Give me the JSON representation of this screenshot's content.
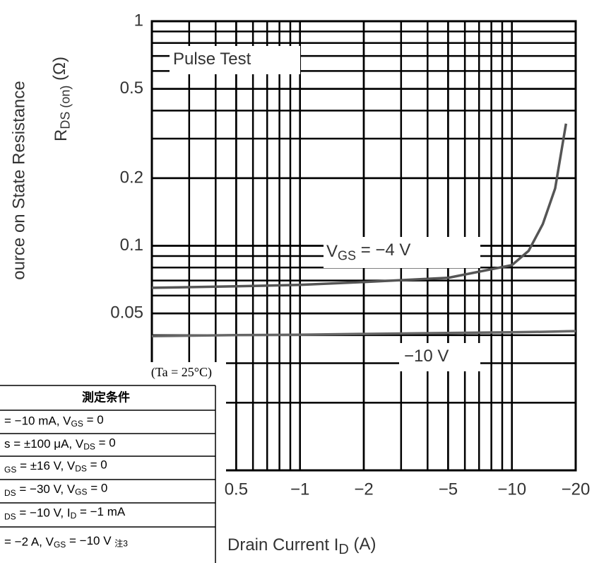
{
  "chart_data": {
    "type": "line",
    "y_title": "ource on State Resistance",
    "y_label": [
      "R",
      "DS (on)",
      "   (Ω)"
    ],
    "x_label": [
      "Drain Current   I",
      "D",
      "   (A)"
    ],
    "annotations": [
      [
        "Pulse Test"
      ],
      [
        "V",
        "GS",
        " = −4 V"
      ],
      [
        "−10 V"
      ]
    ],
    "log_x": true,
    "log_y": true,
    "grid": true,
    "xlim": [
      -0.2,
      -20
    ],
    "ylim": [
      0.01,
      1
    ],
    "xticks": [
      {
        "value": -0.5,
        "label": "0.5"
      },
      {
        "value": -1,
        "label": "−1"
      },
      {
        "value": -2,
        "label": "−2"
      },
      {
        "value": -5,
        "label": "−5"
      },
      {
        "value": -10,
        "label": "−10"
      },
      {
        "value": -20,
        "label": "−20"
      }
    ],
    "yticks": [
      1,
      0.5,
      0.2,
      0.1,
      0.05
    ],
    "x": [
      -0.2,
      -0.5,
      -1,
      -2,
      -5,
      -10,
      -12,
      -14,
      -16,
      -18,
      -20
    ],
    "series": [
      {
        "color": "#555555",
        "values": [
          0.065,
          0.066,
          0.067,
          0.069,
          0.072,
          0.082,
          0.095,
          0.125,
          0.18,
          0.35,
          null
        ]
      },
      {
        "color": "#666666",
        "values": [
          0.0396,
          0.04,
          0.0402,
          0.0405,
          0.0409,
          0.0412,
          0.0413,
          0.0414,
          0.0415,
          0.0416,
          0.0417
        ]
      }
    ]
  },
  "table": {
    "note": "(Ta = 25°C)",
    "header": "測定条件",
    "rows": [
      [
        "= −10 mA, V",
        "GS",
        " = 0"
      ],
      [
        "s = ±100 μA, V",
        "DS",
        " = 0"
      ],
      [
        "GS",
        " = ±16 V, V",
        "DS",
        " = 0"
      ],
      [
        "DS",
        " = −30 V, V",
        "GS",
        " = 0"
      ],
      [
        "DS",
        " = −10 V, I",
        "D",
        " = −1 mA"
      ],
      [
        "= −2 A, V",
        "GS",
        " = −10 V ",
        "注3"
      ]
    ],
    "sub_first": [
      false,
      false,
      true,
      true,
      true,
      false
    ]
  }
}
